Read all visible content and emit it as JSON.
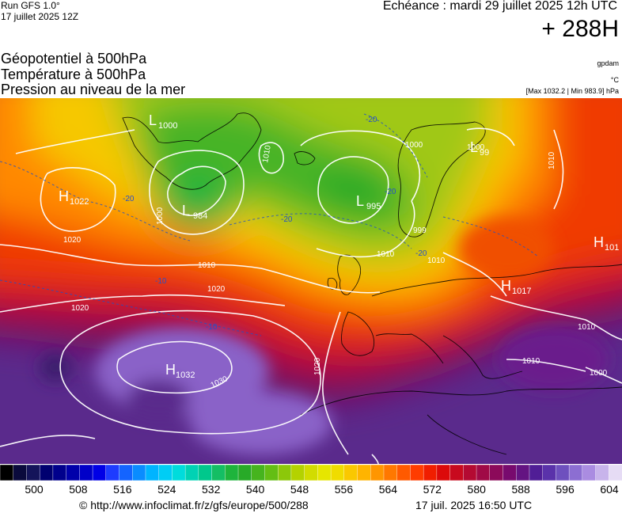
{
  "header": {
    "run_title": "Run GFS 1.0°",
    "run_date": "17 juillet 2025 12Z",
    "echeance": "Echéance : mardi 29 juillet 2025 12h UTC",
    "lead_time": "+ 288H"
  },
  "variables": [
    "Géopotentiel à 500hPa",
    "Température à 500hPa",
    "Pression au niveau de la mer"
  ],
  "units": {
    "geopotential": "gpdam",
    "temperature": "°C",
    "range": "[Max 1032.2 | Min 983.9] hPa"
  },
  "pressure_centers": [
    {
      "type": "H",
      "value": "1022"
    },
    {
      "type": "L",
      "value": "1000"
    },
    {
      "type": "L",
      "value": "984"
    },
    {
      "type": "L",
      "value": "995"
    },
    {
      "type": "L",
      "value": "99"
    },
    {
      "type": "H",
      "value": "101"
    },
    {
      "type": "H",
      "value": "1017"
    },
    {
      "type": "H",
      "value": "1032"
    }
  ],
  "isobar_labels": [
    "1020",
    "1010",
    "1020",
    "1020",
    "1010",
    "1000",
    "1010",
    "1000",
    "1010",
    "1000",
    "1010",
    "1010",
    "1000",
    "1030",
    "1020",
    "1010",
    "999"
  ],
  "isotherm_labels": [
    "-20",
    "-20",
    "-20",
    "-10",
    "-10",
    "-20",
    "-20"
  ],
  "colorbar": {
    "colors": [
      "#000000",
      "#0a0a3c",
      "#14145a",
      "#000070",
      "#00008c",
      "#0000aa",
      "#0000c8",
      "#0000e6",
      "#1e3cff",
      "#1464ff",
      "#0a8cff",
      "#00b4ff",
      "#00cdf5",
      "#00dcdc",
      "#00d2b4",
      "#00c88c",
      "#14be64",
      "#1eb43c",
      "#28aa28",
      "#46b41e",
      "#64be14",
      "#8cc80a",
      "#b4d200",
      "#d2dc00",
      "#e6e600",
      "#f0dc00",
      "#fac800",
      "#ffb400",
      "#ff9600",
      "#ff7800",
      "#ff5a00",
      "#ff3c00",
      "#f01e00",
      "#dc0a0a",
      "#c80a1e",
      "#b40a32",
      "#a00a46",
      "#8c0a5a",
      "#780a6e",
      "#641482",
      "#501e96",
      "#5a32aa",
      "#6e50be",
      "#8c6ed2",
      "#aa8ce1",
      "#c8b4eb",
      "#e6dcf5"
    ],
    "ticks": [
      "500",
      "508",
      "516",
      "524",
      "532",
      "540",
      "548",
      "556",
      "564",
      "572",
      "580",
      "588",
      "596",
      "604"
    ]
  },
  "footer": {
    "url": "© http://www.infoclimat.fr/z/gfs/europe/500/288",
    "timestamp": "17 juil. 2025 16:50 UTC"
  }
}
